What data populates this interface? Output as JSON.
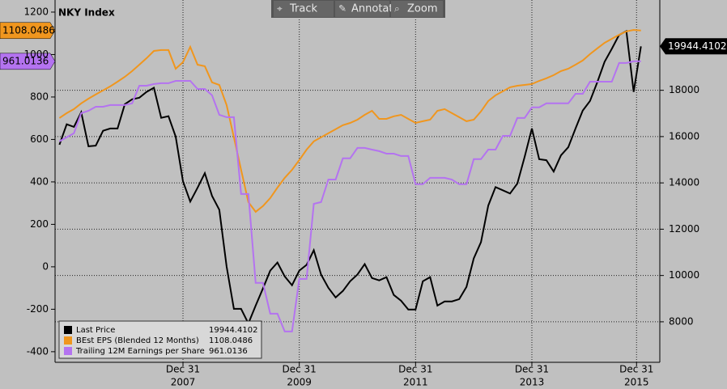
{
  "chart_data": {
    "type": "line",
    "title": "NKY Index",
    "toolbar": [
      "Track",
      "Annotate",
      "Zoom"
    ],
    "x": [
      2005.875,
      2006,
      2006.125,
      2006.25,
      2006.375,
      2006.5,
      2006.625,
      2006.75,
      2006.875,
      2007,
      2007.125,
      2007.25,
      2007.375,
      2007.5,
      2007.625,
      2007.75,
      2007.875,
      2008,
      2008.125,
      2008.25,
      2008.375,
      2008.5,
      2008.625,
      2008.75,
      2008.875,
      2009,
      2009.125,
      2009.25,
      2009.375,
      2009.5,
      2009.625,
      2009.75,
      2009.875,
      2010,
      2010.125,
      2010.25,
      2010.375,
      2010.5,
      2010.625,
      2010.75,
      2010.875,
      2011,
      2011.125,
      2011.25,
      2011.375,
      2011.5,
      2011.625,
      2011.75,
      2011.875,
      2012,
      2012.125,
      2012.25,
      2012.375,
      2012.5,
      2012.625,
      2012.75,
      2012.875,
      2013,
      2013.125,
      2013.25,
      2013.375,
      2013.5,
      2013.625,
      2013.75,
      2013.875,
      2014,
      2014.125,
      2014.25,
      2014.375,
      2014.5,
      2014.625,
      2014.75,
      2014.875,
      2015,
      2015.125,
      2015.25,
      2015.375,
      2015.5,
      2015.625,
      2015.75,
      2015.875
    ],
    "xlim": [
      2005.8,
      2016.2
    ],
    "xticks": [
      {
        "value": 2008,
        "label": "Dec 31",
        "sublabel": "2007"
      },
      {
        "value": 2010,
        "label": "Dec 31",
        "sublabel": "2009"
      },
      {
        "value": 2012,
        "label": "Dec 31",
        "sublabel": "2011"
      },
      {
        "value": 2014,
        "label": "Dec 31",
        "sublabel": "2013"
      },
      {
        "value": 2015.8,
        "label": "Dec 31",
        "sublabel": "2015"
      }
    ],
    "ylim": [
      -450,
      1257
    ],
    "yticks": [
      -400,
      -200,
      0,
      200,
      400,
      600,
      800,
      1000,
      1200
    ],
    "y2lim": [
      6250,
      21900
    ],
    "y2ticks": [
      8000,
      10000,
      12000,
      14000,
      16000,
      18000
    ],
    "grid": true,
    "series": [
      {
        "name": "Last Price",
        "color": "#000000",
        "axis": "y2",
        "last_label": "19944.4102",
        "values": [
          15650,
          16530,
          16420,
          17050,
          15580,
          15610,
          16250,
          16350,
          16350,
          17400,
          17610,
          17680,
          17930,
          18110,
          16810,
          16880,
          16000,
          14070,
          13190,
          13790,
          14420,
          13440,
          12840,
          10390,
          8560,
          8560,
          7930,
          8700,
          9440,
          10210,
          10560,
          9960,
          9580,
          10210,
          10460,
          11090,
          10040,
          9470,
          9050,
          9330,
          9750,
          10040,
          10490,
          9890,
          9790,
          9930,
          9160,
          8910,
          8530,
          8530,
          9750,
          9930,
          8700,
          8880,
          8880,
          8980,
          9510,
          10740,
          11440,
          13020,
          13820,
          13680,
          13540,
          13970,
          15120,
          16350,
          15020,
          14980,
          14490,
          15190,
          15540,
          16350,
          17120,
          17540,
          18350,
          19230,
          19790,
          20390,
          20560,
          17930,
          19900
        ]
      },
      {
        "name": "BEst EPS (Blended 12 Months)",
        "color": "#f0961e",
        "axis": "y",
        "last_label": "1108.0486",
        "values": [
          701,
          724,
          743,
          770,
          792,
          812,
          831,
          850,
          872,
          895,
          922,
          952,
          983,
          1017,
          1021,
          1021,
          933,
          964,
          1036,
          952,
          945,
          869,
          857,
          762,
          610,
          457,
          305,
          259,
          286,
          324,
          373,
          419,
          457,
          503,
          552,
          591,
          610,
          629,
          648,
          667,
          678,
          693,
          716,
          735,
          697,
          697,
          709,
          716,
          697,
          678,
          686,
          693,
          735,
          743,
          724,
          705,
          686,
          693,
          732,
          781,
          808,
          827,
          846,
          853,
          857,
          861,
          876,
          888,
          903,
          922,
          933,
          952,
          972,
          1002,
          1029,
          1055,
          1074,
          1093,
          1109,
          1116,
          1113
        ]
      },
      {
        "name": "Trailing 12M Earnings per Share",
        "color": "#b473f0",
        "axis": "y",
        "last_label": "961.0136",
        "values": [
          591,
          610,
          629,
          724,
          735,
          754,
          754,
          762,
          762,
          762,
          770,
          853,
          853,
          861,
          865,
          865,
          876,
          876,
          876,
          838,
          838,
          808,
          716,
          705,
          705,
          343,
          343,
          -76,
          -76,
          -221,
          -221,
          -305,
          -305,
          -57,
          -57,
          297,
          305,
          411,
          411,
          511,
          511,
          560,
          560,
          552,
          545,
          533,
          533,
          522,
          522,
          389,
          389,
          419,
          419,
          419,
          411,
          389,
          389,
          507,
          507,
          552,
          552,
          617,
          617,
          701,
          701,
          751,
          751,
          770,
          770,
          770,
          770,
          815,
          815,
          872,
          872,
          872,
          872,
          960,
          960,
          968,
          968
        ]
      }
    ]
  }
}
